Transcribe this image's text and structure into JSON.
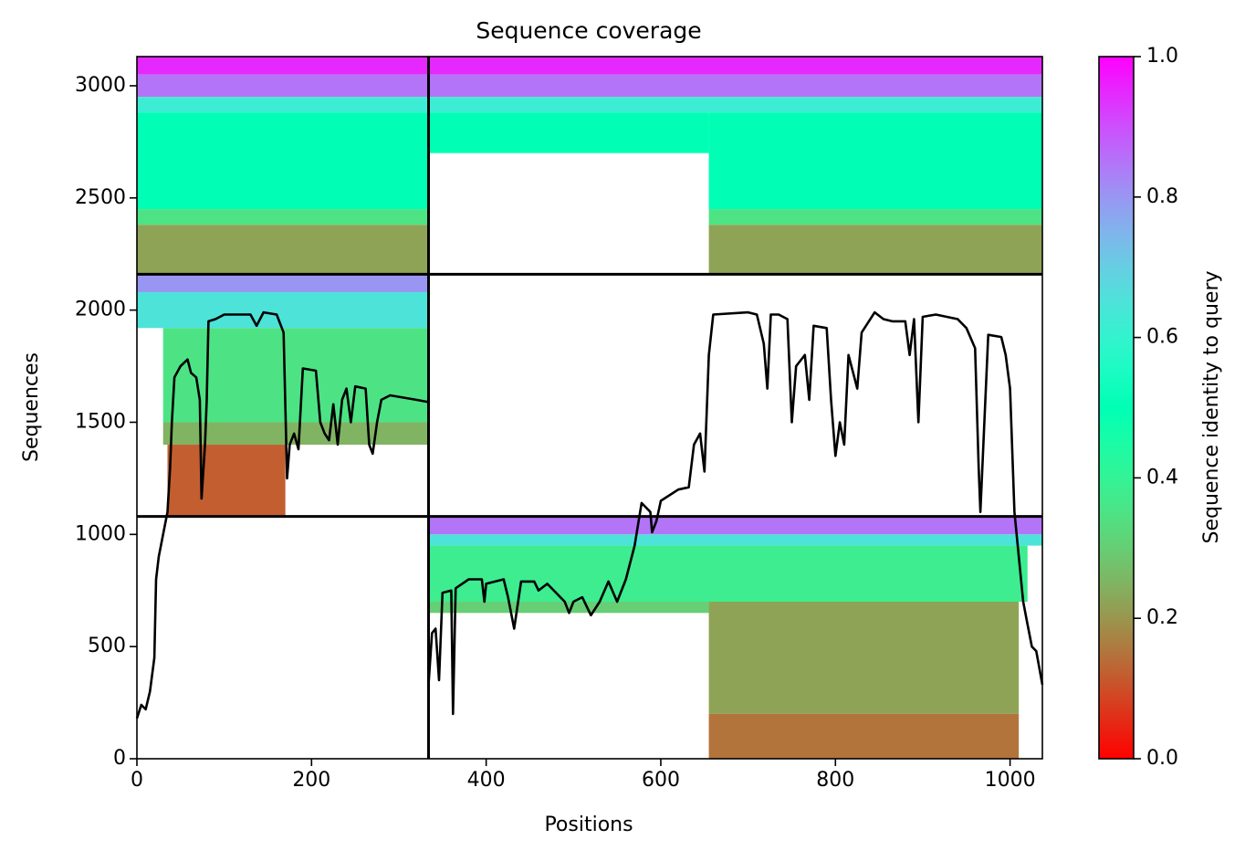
{
  "chart_data": {
    "type": "coverage",
    "title": "Sequence coverage",
    "xlabel": "Positions",
    "ylabel": "Sequences",
    "xlim": [
      0,
      1037
    ],
    "ylim": [
      0,
      3130
    ],
    "xticks": [
      0,
      200,
      400,
      600,
      800,
      1000
    ],
    "yticks": [
      0,
      500,
      1000,
      1500,
      2000,
      2500,
      3000
    ],
    "colormap": "rainbow_r",
    "line_color": "#000000",
    "chain_boundaries": [
      334
    ],
    "block_boundaries": [
      1080,
      2160
    ],
    "colorbar": {
      "label": "Sequence identity to query",
      "lim": [
        0,
        1
      ],
      "ticks": [
        {
          "value": 0,
          "label": "0.0"
        },
        0.2,
        0.4,
        0.6,
        0.8,
        {
          "value": 1,
          "label": "1.0"
        }
      ]
    },
    "blocks": [
      {
        "x": [
          0,
          1037
        ],
        "y": [
          3050,
          3130
        ],
        "identity": 0.95
      },
      {
        "x": [
          0,
          1037
        ],
        "y": [
          2950,
          3050
        ],
        "identity": 0.85
      },
      {
        "x": [
          0,
          1037
        ],
        "y": [
          2880,
          2950
        ],
        "identity": 0.62
      },
      {
        "x": [
          0,
          334
        ],
        "y": [
          2450,
          2880
        ],
        "identity": 0.5
      },
      {
        "x": [
          334,
          655
        ],
        "y": [
          2700,
          2880
        ],
        "identity": 0.5
      },
      {
        "x": [
          655,
          1037
        ],
        "y": [
          2450,
          2880
        ],
        "identity": 0.5
      },
      {
        "x": [
          0,
          334
        ],
        "y": [
          2380,
          2450
        ],
        "identity": 0.35
      },
      {
        "x": [
          655,
          1037
        ],
        "y": [
          2380,
          2450
        ],
        "identity": 0.35
      },
      {
        "x": [
          0,
          334
        ],
        "y": [
          2160,
          2380
        ],
        "identity": 0.22
      },
      {
        "x": [
          655,
          1037
        ],
        "y": [
          2160,
          2380
        ],
        "identity": 0.22
      },
      {
        "x": [
          0,
          334
        ],
        "y": [
          2080,
          2160
        ],
        "identity": 0.8
      },
      {
        "x": [
          0,
          334
        ],
        "y": [
          1920,
          2080
        ],
        "identity": 0.65
      },
      {
        "x": [
          30,
          334
        ],
        "y": [
          1500,
          1920
        ],
        "identity": 0.35
      },
      {
        "x": [
          30,
          334
        ],
        "y": [
          1400,
          1500
        ],
        "identity": 0.25
      },
      {
        "x": [
          35,
          170
        ],
        "y": [
          1080,
          1400
        ],
        "identity": 0.12
      },
      {
        "x": [
          334,
          1037
        ],
        "y": [
          1000,
          1080
        ],
        "identity": 0.85
      },
      {
        "x": [
          334,
          1037
        ],
        "y": [
          950,
          1000
        ],
        "identity": 0.65
      },
      {
        "x": [
          334,
          1020
        ],
        "y": [
          700,
          950
        ],
        "identity": 0.38
      },
      {
        "x": [
          334,
          655
        ],
        "y": [
          650,
          700
        ],
        "identity": 0.3
      },
      {
        "x": [
          655,
          1010
        ],
        "y": [
          200,
          700
        ],
        "identity": 0.22
      },
      {
        "x": [
          655,
          1010
        ],
        "y": [
          0,
          200
        ],
        "identity": 0.15
      }
    ],
    "coverage": {
      "x": [
        0,
        5,
        10,
        15,
        20,
        22,
        25,
        30,
        35,
        38,
        40,
        43,
        50,
        58,
        62,
        68,
        72,
        74,
        78,
        80,
        82,
        90,
        100,
        130,
        137,
        145,
        160,
        168,
        172,
        175,
        180,
        185,
        190,
        205,
        210,
        215,
        220,
        225,
        230,
        235,
        240,
        245,
        250,
        262,
        266,
        270,
        275,
        280,
        290,
        320,
        334,
        334,
        338,
        342,
        346,
        350,
        360,
        362,
        365,
        380,
        395,
        398,
        400,
        420,
        425,
        432,
        440,
        455,
        460,
        470,
        490,
        495,
        500,
        510,
        520,
        530,
        540,
        550,
        560,
        570,
        578,
        588,
        590,
        595,
        600,
        620,
        632,
        638,
        645,
        650,
        655,
        660,
        700,
        710,
        718,
        722,
        726,
        735,
        745,
        750,
        755,
        765,
        770,
        775,
        790,
        795,
        800,
        805,
        810,
        815,
        825,
        830,
        845,
        855,
        865,
        880,
        885,
        890,
        895,
        900,
        915,
        940,
        950,
        960,
        964,
        966,
        970,
        975,
        990,
        995,
        1000,
        1005,
        1010,
        1015,
        1020,
        1025,
        1030,
        1037
      ],
      "values": [
        180,
        240,
        220,
        300,
        450,
        800,
        900,
        1000,
        1100,
        1300,
        1500,
        1700,
        1750,
        1780,
        1720,
        1700,
        1600,
        1160,
        1400,
        1600,
        1950,
        1960,
        1980,
        1980,
        1930,
        1990,
        1980,
        1900,
        1250,
        1400,
        1450,
        1380,
        1740,
        1730,
        1500,
        1450,
        1420,
        1580,
        1400,
        1600,
        1650,
        1500,
        1660,
        1650,
        1400,
        1360,
        1500,
        1600,
        1620,
        1600,
        1590,
        330,
        560,
        580,
        350,
        740,
        750,
        200,
        760,
        800,
        800,
        700,
        780,
        800,
        720,
        580,
        790,
        790,
        750,
        780,
        700,
        650,
        700,
        720,
        640,
        700,
        790,
        700,
        800,
        950,
        1140,
        1100,
        1010,
        1060,
        1150,
        1200,
        1210,
        1400,
        1450,
        1280,
        1800,
        1980,
        1990,
        1980,
        1850,
        1650,
        1980,
        1980,
        1960,
        1500,
        1750,
        1800,
        1600,
        1930,
        1920,
        1600,
        1350,
        1500,
        1400,
        1800,
        1650,
        1900,
        1990,
        1960,
        1950,
        1950,
        1800,
        1960,
        1500,
        1970,
        1980,
        1960,
        1920,
        1830,
        1300,
        1100,
        1450,
        1890,
        1880,
        1800,
        1650,
        1100,
        900,
        700,
        600,
        500,
        480,
        330
      ]
    }
  }
}
